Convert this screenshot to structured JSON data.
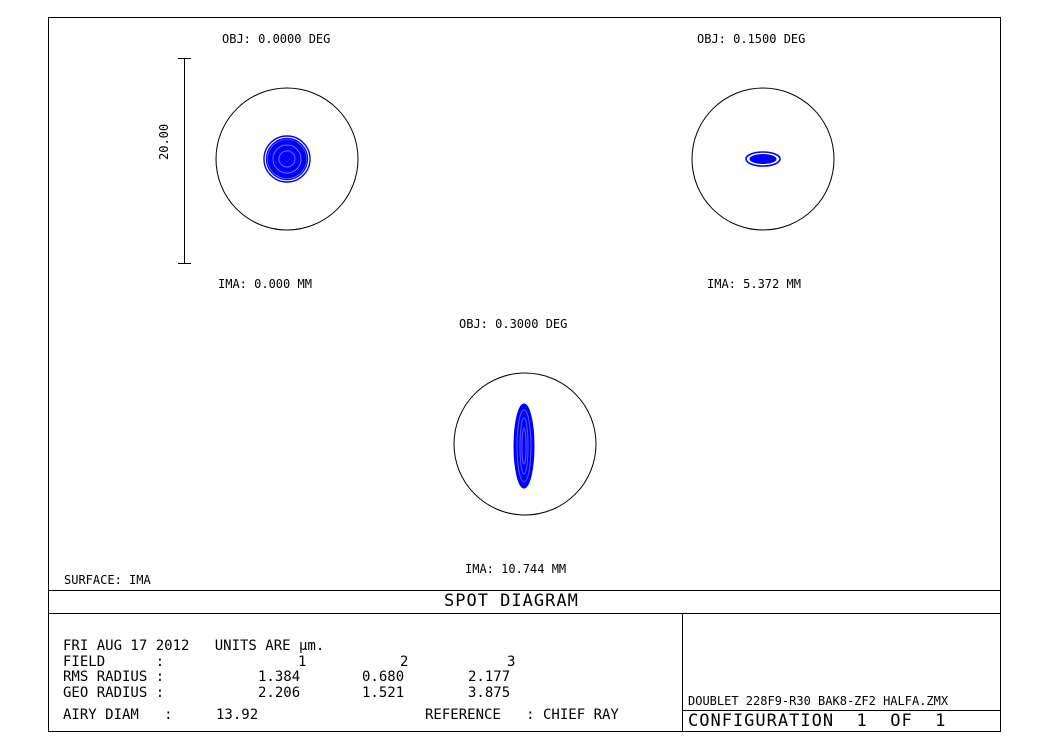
{
  "fields": [
    {
      "obj": "OBJ: 0.0000 DEG",
      "ima": "IMA: 0.000 MM"
    },
    {
      "obj": "OBJ: 0.1500 DEG",
      "ima": "IMA: 5.372 MM"
    },
    {
      "obj": "OBJ: 0.3000 DEG",
      "ima": "IMA: 10.744 MM"
    }
  ],
  "scale_bar_label": "20.00",
  "surface_label": "SURFACE: IMA",
  "title": "SPOT DIAGRAM",
  "info": {
    "date_units": "FRI AUG 17 2012   UNITS ARE µm.",
    "rows": [
      {
        "label": "FIELD      :",
        "values": [
          "1",
          "2",
          "3"
        ]
      },
      {
        "label": "RMS RADIUS :",
        "values": [
          "1.384",
          "0.680",
          "2.177"
        ]
      },
      {
        "label": "GEO RADIUS :",
        "values": [
          "2.206",
          "1.521",
          "3.875"
        ]
      }
    ],
    "airy_label": "AIRY DIAM   :",
    "airy_value": "13.92",
    "reference": "REFERENCE   : CHIEF RAY"
  },
  "file_name": "DOUBLET 228F9-R30 BAK8-ZF2 HALFA.ZMX",
  "configuration": "CONFIGURATION  1  OF  1",
  "colors": {
    "spot": "#0000ff",
    "line": "#000000"
  }
}
